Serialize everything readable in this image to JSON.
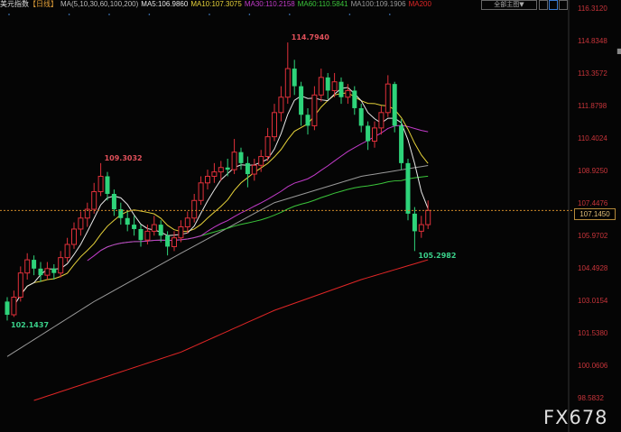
{
  "header": {
    "symbol": "美元指数",
    "period": "【日线】",
    "ma_params": "MA(5,10,30,60,100,200)",
    "ma5": "MA5:106.9860",
    "ma10": "MA10:107.3075",
    "ma30": "MA30:110.2158",
    "ma60": "MA60:110.5841",
    "ma100": "MA100:109.1906",
    "ma200": "MA200",
    "main_chart_button": "全部主图▼"
  },
  "colors": {
    "up": "#e0303a",
    "down": "#2ed47a",
    "ma5": "#e8e8e8",
    "ma10": "#e6d23a",
    "ma30": "#c23bc9",
    "ma60": "#3bc63b",
    "ma100": "#9a9a9a",
    "ma200": "#e02626",
    "axis": "#c8343a",
    "last": "#d08a2a"
  },
  "chart_data": {
    "type": "candlestick",
    "ylim": [
      98.5832,
      116.312
    ],
    "yticks": [
      "116.3120",
      "114.8348",
      "113.3572",
      "111.8798",
      "110.4024",
      "108.9250",
      "107.4476",
      "105.9702",
      "104.4928",
      "103.0154",
      "101.5380",
      "100.0606",
      "98.5832"
    ],
    "last_price": "107.1450",
    "annotations": [
      {
        "index": 0,
        "value": "102.1437",
        "kind": "low"
      },
      {
        "index": 14,
        "value": "109.3032",
        "kind": "high"
      },
      {
        "index": 42,
        "value": "114.7940",
        "kind": "high"
      },
      {
        "index": 61,
        "value": "105.2982",
        "kind": "low"
      }
    ],
    "candles": [
      [
        103.0,
        103.2,
        102.14,
        102.4
      ],
      [
        102.4,
        103.5,
        102.3,
        103.2
      ],
      [
        103.2,
        104.6,
        103.0,
        104.3
      ],
      [
        104.3,
        105.2,
        104.0,
        104.9
      ],
      [
        104.9,
        105.1,
        104.2,
        104.5
      ],
      [
        104.5,
        104.8,
        103.9,
        104.2
      ],
      [
        104.2,
        104.8,
        104.0,
        104.5
      ],
      [
        104.5,
        104.7,
        104.0,
        104.3
      ],
      [
        104.3,
        105.3,
        104.1,
        105.0
      ],
      [
        105.0,
        105.9,
        104.8,
        105.6
      ],
      [
        105.6,
        106.6,
        105.4,
        106.3
      ],
      [
        106.3,
        107.1,
        106.0,
        106.8
      ],
      [
        106.8,
        107.5,
        106.4,
        107.2
      ],
      [
        107.2,
        108.4,
        107.0,
        108.0
      ],
      [
        108.0,
        109.3,
        107.8,
        108.7
      ],
      [
        108.7,
        108.9,
        107.6,
        107.9
      ],
      [
        107.9,
        108.1,
        106.9,
        107.2
      ],
      [
        107.2,
        107.5,
        106.5,
        106.8
      ],
      [
        106.8,
        107.1,
        106.2,
        106.5
      ],
      [
        106.5,
        106.9,
        106.0,
        106.3
      ],
      [
        106.3,
        106.5,
        105.5,
        105.8
      ],
      [
        105.8,
        106.5,
        105.6,
        106.2
      ],
      [
        106.2,
        106.9,
        106.0,
        106.5
      ],
      [
        106.5,
        106.7,
        105.7,
        106.0
      ],
      [
        106.0,
        106.2,
        105.1,
        105.5
      ],
      [
        105.5,
        106.2,
        105.3,
        105.9
      ],
      [
        105.9,
        106.7,
        105.7,
        106.4
      ],
      [
        106.4,
        107.1,
        106.1,
        106.8
      ],
      [
        106.8,
        107.9,
        106.6,
        107.6
      ],
      [
        107.6,
        108.7,
        107.4,
        108.4
      ],
      [
        108.4,
        109.0,
        108.1,
        108.7
      ],
      [
        108.7,
        109.3,
        108.4,
        108.9
      ],
      [
        108.9,
        109.4,
        108.5,
        109.1
      ],
      [
        109.1,
        109.5,
        108.7,
        109.0
      ],
      [
        109.0,
        110.4,
        108.8,
        109.8
      ],
      [
        109.8,
        110.0,
        109.0,
        109.3
      ],
      [
        109.3,
        109.6,
        108.2,
        108.8
      ],
      [
        108.8,
        109.5,
        108.5,
        109.2
      ],
      [
        109.2,
        109.9,
        108.9,
        109.6
      ],
      [
        109.6,
        110.9,
        109.4,
        110.5
      ],
      [
        110.5,
        112.0,
        110.3,
        111.6
      ],
      [
        111.6,
        112.8,
        111.2,
        112.3
      ],
      [
        112.3,
        114.79,
        112.0,
        113.6
      ],
      [
        113.6,
        114.0,
        112.4,
        112.8
      ],
      [
        112.8,
        113.0,
        111.0,
        111.5
      ],
      [
        111.5,
        111.8,
        110.6,
        111.0
      ],
      [
        111.0,
        112.8,
        110.8,
        112.4
      ],
      [
        112.4,
        113.6,
        112.1,
        113.2
      ],
      [
        113.2,
        113.4,
        112.2,
        112.6
      ],
      [
        112.6,
        113.4,
        112.3,
        113.0
      ],
      [
        113.0,
        113.2,
        112.0,
        112.3
      ],
      [
        112.3,
        112.9,
        112.0,
        112.6
      ],
      [
        112.6,
        112.8,
        111.5,
        111.8
      ],
      [
        111.8,
        112.0,
        110.7,
        111.0
      ],
      [
        111.0,
        111.2,
        109.9,
        110.3
      ],
      [
        110.3,
        111.2,
        110.0,
        110.9
      ],
      [
        110.9,
        111.9,
        110.6,
        111.6
      ],
      [
        111.6,
        113.3,
        111.4,
        112.9
      ],
      [
        112.9,
        113.0,
        110.7,
        111.0
      ],
      [
        111.0,
        111.3,
        109.0,
        109.3
      ],
      [
        109.3,
        109.5,
        106.7,
        107.0
      ],
      [
        107.0,
        107.3,
        105.3,
        106.2
      ],
      [
        106.2,
        106.9,
        105.9,
        106.5
      ],
      [
        106.5,
        107.6,
        106.3,
        107.15
      ]
    ],
    "ma100": [
      [
        0,
        100.5
      ],
      [
        13,
        103.0
      ],
      [
        26,
        105.2
      ],
      [
        40,
        107.5
      ],
      [
        53,
        108.7
      ],
      [
        63,
        109.19
      ]
    ],
    "ma200": [
      [
        4,
        98.5
      ],
      [
        26,
        100.7
      ],
      [
        40,
        102.6
      ],
      [
        53,
        104.0
      ],
      [
        63,
        104.9
      ]
    ]
  },
  "watermark": "FX678"
}
